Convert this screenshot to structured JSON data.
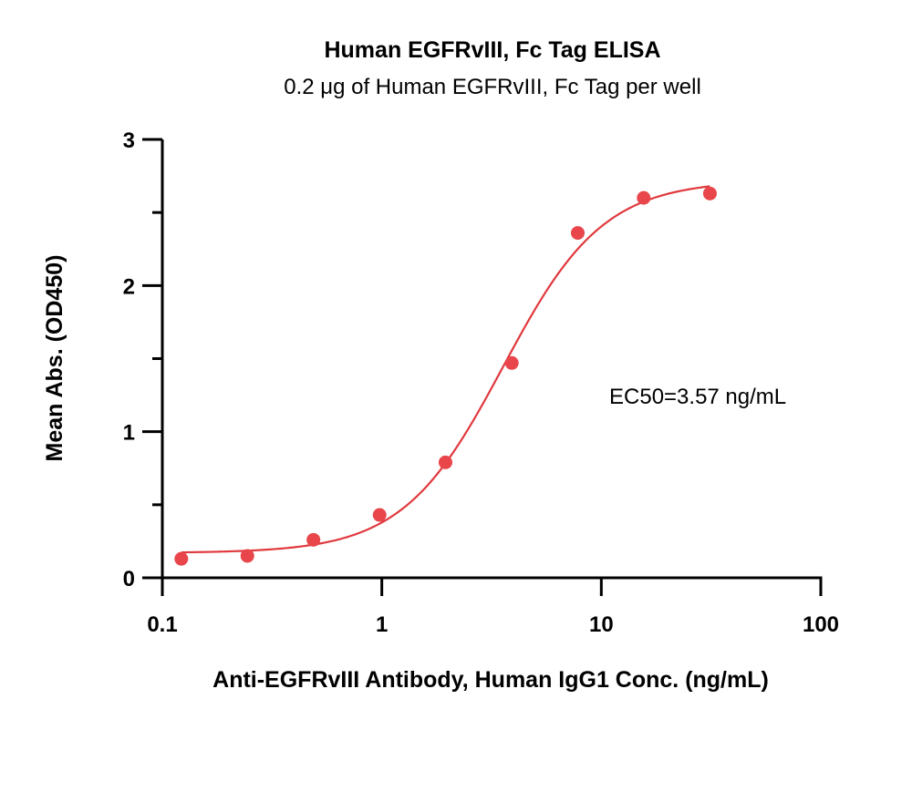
{
  "chart_data": {
    "type": "scatter",
    "title": "Human EGFRvIII, Fc Tag ELISA",
    "subtitle": "0.2 μg of Human EGFRvIII, Fc Tag per well",
    "xlabel": "Anti-EGFRvIII Antibody, Human IgG1  Conc. (ng/mL)",
    "ylabel": "Mean Abs. (OD450)",
    "x_scale": "log",
    "xlim": [
      0.1,
      100
    ],
    "ylim": [
      0,
      3
    ],
    "x_ticks": [
      "0.1",
      "1",
      "10",
      "100"
    ],
    "y_ticks": [
      "0",
      "1",
      "2",
      "3"
    ],
    "grid": false,
    "annotation": "EC50=3.57 ng/mL",
    "point_color": "#e8464b",
    "line_color": "#e0393e",
    "series": [
      {
        "x": [
          0.122,
          0.244,
          0.488,
          0.977,
          1.95,
          3.91,
          7.81,
          15.6,
          31.25
        ],
        "y": [
          0.13,
          0.15,
          0.26,
          0.43,
          0.79,
          1.47,
          2.36,
          2.6,
          2.63
        ]
      }
    ],
    "fit": {
      "model": "4PL",
      "bottom": 0.17,
      "top": 2.72,
      "ec50": 3.57,
      "hill": 1.9
    }
  }
}
